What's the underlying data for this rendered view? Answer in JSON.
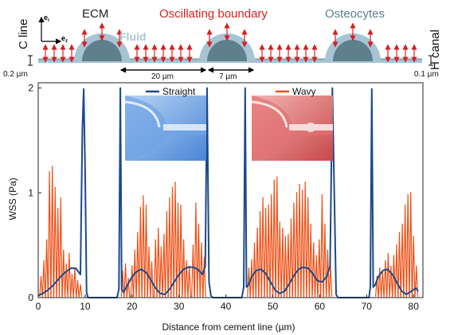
{
  "diagram": {
    "c_line_label": "C line",
    "h_canal_label": "H canal",
    "ecm_label": "ECM",
    "oscillating_label": "Oscillating boundary",
    "osteocytes_label": "Osteocytes",
    "fluid_label": "Fluid",
    "axis_r_label": "e",
    "axis_r_sub": "r",
    "axis_z_label": "e",
    "axis_z_sub": "z",
    "gap_left_label": "0.2 µm",
    "gap_right_label": "0.1 µm",
    "spacing_label": "20 µm",
    "cell_label": "7 µm",
    "colors": {
      "ecm": "#a7c4d4",
      "cell": "#5e7f8e",
      "arrow": "#d42020",
      "title": "#d42020",
      "osteo": "#5e7f8e"
    }
  },
  "chart_data": {
    "type": "line",
    "xlabel": "Distance from cement line (µm)",
    "ylabel": "WSS (Pa)",
    "xlim": [
      0,
      82
    ],
    "ylim": [
      0,
      2.05
    ],
    "xticks": [
      0,
      10,
      20,
      30,
      40,
      50,
      60,
      70,
      80
    ],
    "yticks": [
      0,
      1,
      2
    ],
    "legend_position": "top-center",
    "series": [
      {
        "name": "Straight",
        "color": "#1a4a8a",
        "x": [
          0,
          1,
          2,
          3,
          4,
          5,
          6,
          7,
          8,
          9,
          9.4,
          9.7,
          10,
          10.3,
          10.6,
          16.8,
          17.2,
          17.5,
          17.8,
          18.2,
          19,
          20,
          21,
          22,
          23,
          24,
          25,
          26,
          27,
          28,
          29,
          30,
          31,
          32,
          33,
          34,
          35,
          35.6,
          36,
          36.4,
          36.8,
          37.2,
          43.4,
          43.8,
          44.1,
          44.4,
          44.8,
          45.5,
          46.5,
          47.5,
          48.5,
          49.5,
          50.5,
          51.5,
          52.5,
          53.5,
          54.5,
          55.5,
          56.5,
          57.5,
          58.5,
          59.5,
          60.5,
          61.5,
          62.2,
          62.7,
          63.1,
          63.5,
          63.9,
          70.5,
          70.8,
          71.1,
          71.4,
          71.8,
          72.5,
          73.5,
          74.5,
          75.5,
          76.5,
          77.5,
          78.5,
          79.5,
          80.5,
          81
        ],
        "y": [
          0.02,
          0.04,
          0.07,
          0.11,
          0.16,
          0.21,
          0.25,
          0.28,
          0.28,
          0.22,
          1.6,
          1.99,
          1.2,
          0.05,
          0,
          0,
          0.08,
          2.0,
          0.08,
          0.05,
          0.12,
          0.2,
          0.25,
          0.27,
          0.24,
          0.17,
          0.09,
          0.04,
          0.03,
          0.08,
          0.15,
          0.22,
          0.27,
          0.29,
          0.29,
          0.27,
          0.22,
          0.3,
          2.0,
          0.15,
          0.02,
          0,
          0,
          0.1,
          2.0,
          0.1,
          0.12,
          0.2,
          0.26,
          0.27,
          0.23,
          0.15,
          0.07,
          0.04,
          0.06,
          0.13,
          0.21,
          0.27,
          0.29,
          0.28,
          0.23,
          0.16,
          0.15,
          0.2,
          0.3,
          2.0,
          1.0,
          0.03,
          0,
          0,
          0.1,
          1.99,
          0.1,
          0.12,
          0.2,
          0.26,
          0.27,
          0.22,
          0.14,
          0.06,
          0.03,
          0.06,
          0.09,
          0.06
        ]
      },
      {
        "name": "Wavy",
        "color": "#f04e14",
        "style": "spikes",
        "groups": [
          {
            "peaks": [
              [
                0.6,
                0.2
              ],
              [
                1.2,
                0.35
              ],
              [
                1.8,
                0.55
              ],
              [
                2.4,
                1.2
              ],
              [
                3.0,
                1.25
              ],
              [
                3.6,
                1.05
              ],
              [
                4.2,
                0.85
              ],
              [
                4.8,
                0.95
              ],
              [
                5.4,
                0.45
              ],
              [
                6.0,
                0.32
              ],
              [
                6.6,
                0.42
              ],
              [
                7.2,
                0.22
              ],
              [
                7.8,
                0.28
              ],
              [
                8.4,
                0.16
              ],
              [
                9.0,
                0.12
              ]
            ]
          },
          {
            "peaks": [
              [
                18.0,
                0.25
              ],
              [
                18.6,
                0.32
              ],
              [
                19.2,
                0.18
              ],
              [
                20.0,
                0.3
              ],
              [
                20.6,
                0.45
              ],
              [
                21.2,
                0.62
              ],
              [
                21.8,
                0.86
              ],
              [
                22.4,
                0.97
              ],
              [
                23.0,
                0.88
              ],
              [
                23.6,
                0.48
              ],
              [
                24.2,
                0.34
              ],
              [
                25.0,
                0.55
              ],
              [
                25.6,
                0.66
              ],
              [
                26.2,
                0.48
              ],
              [
                26.8,
                0.6
              ],
              [
                27.4,
                0.82
              ],
              [
                28.0,
                0.95
              ],
              [
                28.6,
                1.05
              ],
              [
                29.2,
                1.1
              ],
              [
                29.8,
                0.9
              ],
              [
                30.4,
                0.88
              ],
              [
                31.0,
                0.55
              ],
              [
                31.6,
                0.35
              ],
              [
                32.2,
                0.3
              ],
              [
                33.0,
                0.5
              ],
              [
                33.6,
                0.9
              ],
              [
                34.2,
                0.7
              ],
              [
                34.8,
                0.52
              ],
              [
                35.4,
                0.38
              ]
            ]
          },
          {
            "peaks": [
              [
                44.9,
                0.28
              ],
              [
                45.5,
                0.36
              ],
              [
                46.1,
                0.52
              ],
              [
                46.7,
                0.66
              ],
              [
                47.3,
                0.82
              ],
              [
                47.9,
                0.95
              ],
              [
                48.5,
                0.85
              ],
              [
                49.1,
                0.88
              ],
              [
                49.7,
                0.98
              ],
              [
                50.3,
                1.12
              ],
              [
                50.9,
                1.15
              ],
              [
                51.5,
                0.72
              ],
              [
                52.1,
                0.66
              ],
              [
                52.7,
                0.58
              ],
              [
                53.3,
                0.6
              ],
              [
                53.9,
                0.75
              ],
              [
                54.5,
                0.9
              ],
              [
                55.1,
                1.0
              ],
              [
                55.7,
                1.08
              ],
              [
                56.3,
                1.02
              ],
              [
                56.9,
                1.1
              ],
              [
                57.5,
                0.95
              ],
              [
                58.1,
                0.7
              ],
              [
                58.7,
                0.52
              ],
              [
                59.3,
                0.4
              ],
              [
                59.9,
                0.55
              ],
              [
                60.5,
                0.98
              ],
              [
                61.1,
                0.7
              ],
              [
                61.7,
                0.45
              ],
              [
                62.3,
                0.3
              ]
            ]
          },
          {
            "peaks": [
              [
                72.2,
                0.2
              ],
              [
                72.8,
                0.28
              ],
              [
                73.4,
                0.25
              ],
              [
                74.0,
                0.35
              ],
              [
                74.6,
                0.42
              ],
              [
                75.2,
                0.3
              ],
              [
                75.8,
                0.4
              ],
              [
                76.4,
                0.5
              ],
              [
                77.0,
                0.62
              ],
              [
                77.6,
                0.7
              ],
              [
                78.2,
                0.88
              ],
              [
                78.8,
                0.98
              ],
              [
                79.4,
                1.0
              ],
              [
                80.0,
                0.58
              ],
              [
                80.6,
                0.3
              ]
            ]
          }
        ]
      }
    ]
  }
}
